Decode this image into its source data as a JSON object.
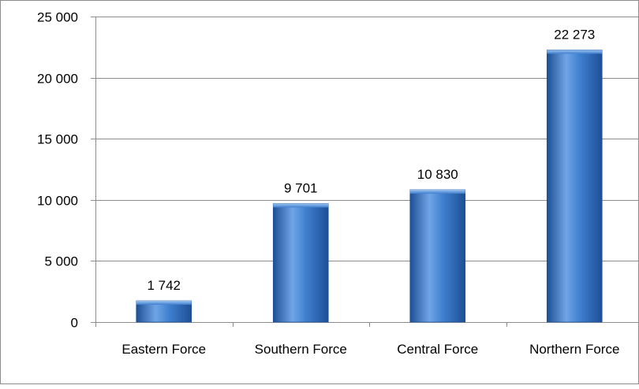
{
  "chart_data": {
    "type": "bar",
    "title": "",
    "xlabel": "",
    "ylabel": "",
    "categories": [
      "Eastern Force",
      "Southern Force",
      "Central Force",
      "Northern Force"
    ],
    "values": [
      1742,
      9701,
      10830,
      22273
    ],
    "value_labels": [
      "1 742",
      "9 701",
      "10 830",
      "22 273"
    ],
    "ylim": [
      0,
      25000
    ],
    "yticks": [
      0,
      5000,
      10000,
      15000,
      20000,
      25000
    ],
    "ytick_labels": [
      "0",
      "5 000",
      "10 000",
      "15 000",
      "20 000",
      "25 000"
    ],
    "grid": true,
    "legend": "none",
    "bar_color": "#3f7fce",
    "bar_color_light": "#6fa5e6",
    "bar_color_dark": "#1e4f96",
    "gridline_color": "#8c8c8c"
  }
}
